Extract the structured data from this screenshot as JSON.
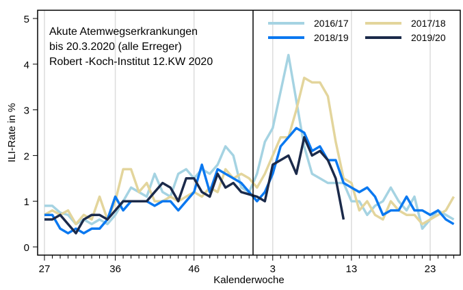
{
  "chart_data": {
    "type": "line",
    "annotation": [
      "Akute Atemwegserkrankungen",
      "bis 20.3.2020 (alle Erreger)",
      "Robert -Koch-Institut 12.KW 2020"
    ],
    "xlabel": "Kalenderwoche",
    "ylabel": "ILI-Rate in %",
    "ylim": [
      0,
      5
    ],
    "yticks": [
      0,
      1,
      2,
      3,
      4,
      5
    ],
    "weeks": [
      27,
      28,
      29,
      30,
      31,
      32,
      33,
      34,
      35,
      36,
      37,
      38,
      39,
      40,
      41,
      42,
      43,
      44,
      45,
      46,
      47,
      48,
      49,
      50,
      51,
      52,
      53,
      1,
      2,
      3,
      4,
      5,
      6,
      7,
      8,
      9,
      10,
      11,
      12,
      13,
      14,
      15,
      16,
      17,
      18,
      19,
      20,
      21,
      22,
      23,
      24,
      25,
      26
    ],
    "xtick_labels": [
      "27",
      "36",
      "46",
      "3",
      "13",
      "23"
    ],
    "year_boundary": "between week 53 and week 1",
    "grid": "vertical lines at labelled weeks",
    "legend_position": "top-right",
    "series": [
      {
        "name": "2016/17",
        "color": "#a5d3e2",
        "values": [
          0.9,
          0.9,
          0.75,
          0.7,
          0.5,
          0.6,
          0.5,
          0.6,
          0.5,
          0.7,
          1.0,
          1.3,
          1.2,
          1.1,
          1.6,
          1.2,
          1.1,
          1.6,
          1.7,
          1.5,
          1.7,
          1.6,
          1.8,
          2.2,
          2.0,
          1.3,
          1.2,
          1.6,
          2.3,
          2.6,
          3.4,
          4.2,
          3.2,
          2.2,
          1.6,
          1.5,
          1.4,
          1.4,
          1.4,
          1.0,
          1.0,
          0.7,
          0.9,
          1.0,
          1.3,
          1.0,
          0.8,
          1.1,
          0.4,
          0.6,
          0.8,
          0.7,
          0.6
        ]
      },
      {
        "name": "2017/18",
        "color": "#e3d59c",
        "values": [
          0.7,
          0.8,
          0.7,
          0.8,
          0.5,
          0.7,
          0.6,
          1.1,
          0.6,
          1.0,
          1.7,
          1.7,
          1.2,
          1.4,
          1.0,
          1.0,
          1.1,
          1.0,
          1.1,
          1.2,
          1.1,
          1.3,
          1.2,
          1.7,
          1.5,
          1.6,
          1.5,
          1.3,
          1.6,
          2.0,
          2.4,
          2.4,
          3.0,
          3.7,
          3.6,
          3.6,
          3.3,
          2.3,
          1.5,
          1.4,
          0.8,
          1.0,
          0.7,
          0.6,
          1.0,
          0.8,
          0.7,
          0.7,
          0.5,
          0.6,
          0.7,
          0.8,
          1.1
        ]
      },
      {
        "name": "2018/19",
        "color": "#0a78f0",
        "values": [
          0.7,
          0.7,
          0.4,
          0.3,
          0.4,
          0.3,
          0.4,
          0.4,
          0.6,
          1.1,
          0.8,
          1.0,
          1.0,
          1.0,
          0.9,
          1.0,
          1.0,
          0.8,
          1.0,
          1.2,
          1.8,
          1.2,
          1.7,
          1.6,
          1.5,
          1.4,
          1.2,
          1.0,
          1.2,
          1.6,
          2.2,
          2.4,
          2.6,
          2.5,
          2.1,
          2.2,
          1.9,
          1.9,
          1.4,
          1.3,
          1.2,
          1.3,
          1.1,
          0.7,
          0.8,
          0.8,
          1.1,
          0.8,
          0.8,
          0.7,
          0.8,
          0.6,
          0.5
        ]
      },
      {
        "name": "2019/20",
        "color": "#1b2a4a",
        "values": [
          0.6,
          0.6,
          0.7,
          0.5,
          0.3,
          0.6,
          0.7,
          0.7,
          0.6,
          0.8,
          1.0,
          1.0,
          1.0,
          1.0,
          1.2,
          1.4,
          1.3,
          1.0,
          1.5,
          1.5,
          1.2,
          1.1,
          1.6,
          1.3,
          1.4,
          1.2,
          1.15,
          1.1,
          1.0,
          1.8,
          1.9,
          2.0,
          1.6,
          2.4,
          2.0,
          2.1,
          1.9,
          1.5,
          0.6
        ]
      }
    ]
  }
}
